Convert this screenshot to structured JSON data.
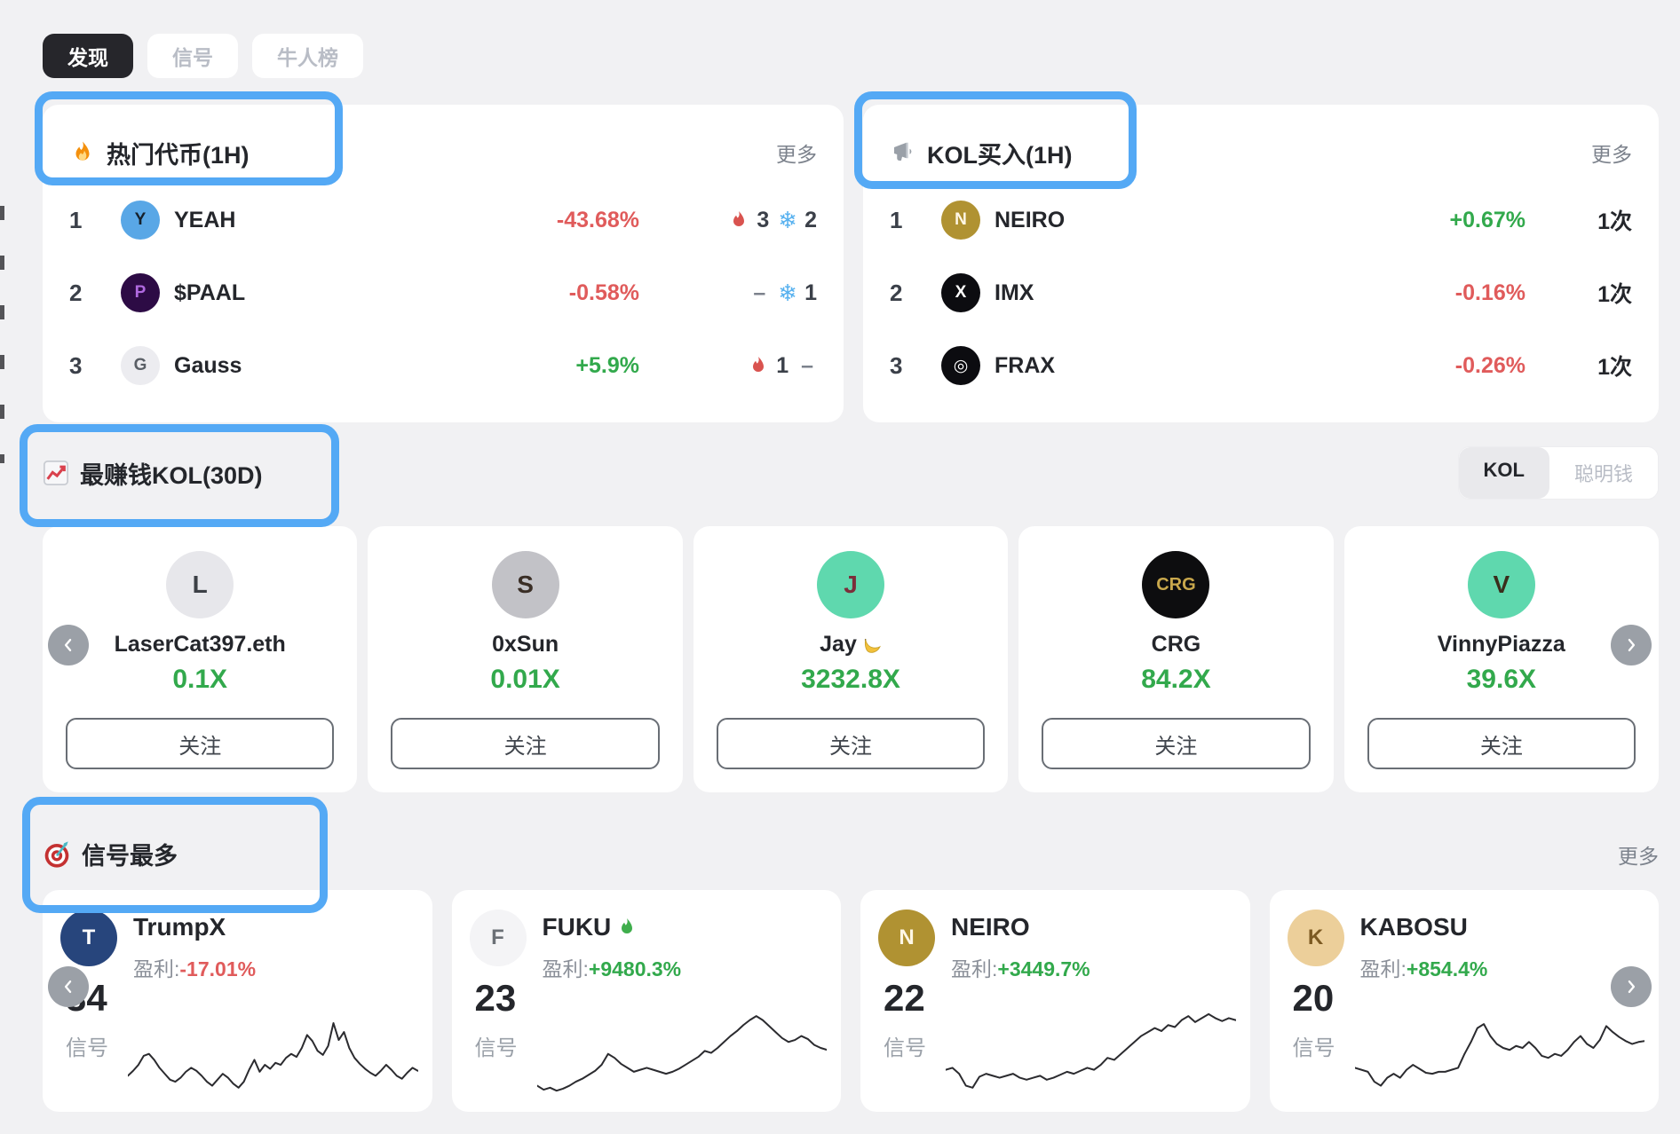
{
  "tabs": {
    "items": [
      {
        "label": "发现",
        "active": true
      },
      {
        "label": "信号",
        "active": false
      },
      {
        "label": "牛人榜",
        "active": false
      }
    ]
  },
  "hot_tokens": {
    "title": "热门代币(1H)",
    "more": "更多",
    "rows": [
      {
        "rank": "1",
        "name": "YEAH",
        "change": "-43.68%",
        "dir": "down",
        "fire": "3",
        "snow": "2",
        "avatar": {
          "bg": "#59a7e6",
          "fg": "#16202b",
          "glyph": "Y"
        }
      },
      {
        "rank": "2",
        "name": "$PAAL",
        "change": "-0.58%",
        "dir": "down",
        "fire": "–",
        "snow": "1",
        "avatar": {
          "bg": "#2d0b45",
          "fg": "#b06ae0",
          "glyph": "P"
        }
      },
      {
        "rank": "3",
        "name": "Gauss",
        "change": "+5.9%",
        "dir": "up",
        "fire": "1",
        "snow": "–",
        "avatar": {
          "bg": "#ececf0",
          "fg": "#5a5f66",
          "glyph": "G"
        }
      }
    ]
  },
  "kol_buys": {
    "title": "KOL买入(1H)",
    "more": "更多",
    "rows": [
      {
        "rank": "1",
        "name": "NEIRO",
        "change": "+0.67%",
        "dir": "up",
        "count": "1次",
        "avatar": {
          "bg": "#b09232",
          "fg": "#fff7e6",
          "glyph": "N"
        }
      },
      {
        "rank": "2",
        "name": "IMX",
        "change": "-0.16%",
        "dir": "down",
        "count": "1次",
        "avatar": {
          "bg": "#0c0c10",
          "fg": "#ffffff",
          "glyph": "X"
        }
      },
      {
        "rank": "3",
        "name": "FRAX",
        "change": "-0.26%",
        "dir": "down",
        "count": "1次",
        "avatar": {
          "bg": "#0c0c10",
          "fg": "#ffffff",
          "glyph": "◎"
        }
      }
    ]
  },
  "top_kols": {
    "title": "最赚钱KOL(30D)",
    "toggle": {
      "active": "KOL",
      "inactive": "聪明钱"
    },
    "follow_label": "关注",
    "cards": [
      {
        "name": "LaserCat397.eth",
        "multiplier": "0.1X",
        "avatar": {
          "bg": "#e7e7eb",
          "fg": "#3c4046",
          "glyph": "L"
        }
      },
      {
        "name": "0xSun",
        "multiplier": "0.01X",
        "avatar": {
          "bg": "#c2c2c7",
          "fg": "#3a2e26",
          "glyph": "S"
        }
      },
      {
        "name": "Jay",
        "multiplier": "3232.8X",
        "avatar": {
          "bg": "#5fd8ae",
          "fg": "#7c2d3a",
          "glyph": "J"
        }
      },
      {
        "name": "CRG",
        "multiplier": "84.2X",
        "avatar": {
          "bg": "#0d0d0f",
          "fg": "#c9a84c",
          "glyph": "CRG"
        }
      },
      {
        "name": "VinnyPiazza",
        "multiplier": "39.6X",
        "avatar": {
          "bg": "#5fd8ae",
          "fg": "#3a2e1c",
          "glyph": "V"
        }
      }
    ]
  },
  "most_signals": {
    "title": "信号最多",
    "more": "更多",
    "profit_label": "盈利:",
    "unit": "信号",
    "cards": [
      {
        "name": "TrumpX",
        "profit": "-17.01%",
        "dir": "down",
        "count": "34",
        "avatar": {
          "bg": "#27457c",
          "fg": "#ffffff",
          "glyph": "T"
        },
        "spark": [
          22,
          27,
          33,
          42,
          44,
          38,
          30,
          24,
          18,
          16,
          20,
          26,
          30,
          27,
          22,
          16,
          12,
          18,
          24,
          20,
          14,
          10,
          16,
          28,
          38,
          26,
          33,
          29,
          35,
          33,
          40,
          44,
          41,
          50,
          63,
          57,
          47,
          43,
          52,
          75,
          58,
          66,
          50,
          40,
          34,
          29,
          25,
          22,
          27,
          33,
          28,
          22,
          19,
          25,
          30,
          27
        ]
      },
      {
        "name": "FUKU",
        "profit": "+9480.3%",
        "dir": "up",
        "count": "23",
        "avatar": {
          "bg": "#f4f4f6",
          "fg": "#6b7076",
          "glyph": "F"
        },
        "spark": [
          12,
          8,
          10,
          7,
          9,
          12,
          16,
          19,
          23,
          27,
          33,
          44,
          40,
          34,
          30,
          26,
          28,
          30,
          28,
          26,
          24,
          26,
          29,
          33,
          37,
          41,
          47,
          45,
          50,
          56,
          62,
          67,
          73,
          78,
          82,
          78,
          72,
          66,
          60,
          56,
          58,
          62,
          59,
          53,
          50,
          48
        ]
      },
      {
        "name": "NEIRO",
        "profit": "+3449.7%",
        "dir": "up",
        "count": "22",
        "avatar": {
          "bg": "#b09232",
          "fg": "#fff7e6",
          "glyph": "N"
        },
        "spark": [
          28,
          30,
          24,
          12,
          10,
          21,
          24,
          22,
          20,
          22,
          24,
          20,
          18,
          20,
          22,
          18,
          20,
          23,
          26,
          24,
          27,
          30,
          28,
          33,
          40,
          38,
          44,
          50,
          56,
          62,
          66,
          70,
          67,
          73,
          71,
          78,
          82,
          76,
          80,
          84,
          80,
          77,
          80,
          78
        ]
      },
      {
        "name": "KABOSU",
        "profit": "+854.4%",
        "dir": "up",
        "count": "20",
        "avatar": {
          "bg": "#eccf9a",
          "fg": "#7c5a22",
          "glyph": "K"
        },
        "spark": [
          30,
          28,
          26,
          16,
          12,
          20,
          24,
          20,
          28,
          33,
          29,
          25,
          24,
          26,
          26,
          28,
          30,
          44,
          56,
          70,
          74,
          62,
          54,
          50,
          48,
          52,
          50,
          56,
          50,
          42,
          40,
          44,
          42,
          48,
          56,
          62,
          54,
          50,
          58,
          72,
          66,
          61,
          57,
          54,
          56,
          57
        ]
      }
    ]
  },
  "colors": {
    "accent_blue": "#54a9f5",
    "up_green": "#32a94c",
    "down_red": "#e05b5b",
    "fire_red": "#d9534f",
    "snow_blue": "#57b1ef"
  }
}
